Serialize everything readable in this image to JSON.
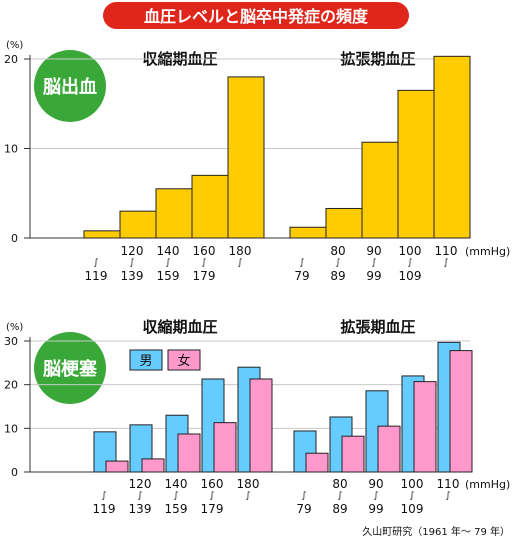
{
  "title": "血圧レベルと脳卒中発症の頻度",
  "colors": {
    "title_bg": "#e0261b",
    "badge": "#3aa838",
    "bar_single": "#ffcc00",
    "male": "#66ccff",
    "female": "#ff99cc",
    "bar_stroke": "#222222"
  },
  "source": "久山町研究（1961 年〜 79 年）",
  "chart_data": [
    {
      "type": "bar",
      "badge": "脳出血",
      "unit_label": "(%)",
      "yticks": [
        "0",
        "10",
        "20"
      ],
      "ylim": [
        0,
        22
      ],
      "groups": [
        {
          "label": "収縮期血圧",
          "categories": [
            {
              "top": "",
              "bottom": "119"
            },
            {
              "top": "120",
              "bottom": "139"
            },
            {
              "top": "140",
              "bottom": "159"
            },
            {
              "top": "160",
              "bottom": "179"
            },
            {
              "top": "180",
              "bottom": ""
            }
          ],
          "values": [
            0.8,
            3.0,
            5.5,
            7.0,
            18.0
          ]
        },
        {
          "label": "拡張期血圧",
          "categories": [
            {
              "top": "",
              "bottom": "79"
            },
            {
              "top": "80",
              "bottom": "89"
            },
            {
              "top": "90",
              "bottom": "99"
            },
            {
              "top": "100",
              "bottom": "109"
            },
            {
              "top": "110",
              "bottom": ""
            }
          ],
          "values": [
            1.2,
            3.3,
            10.7,
            16.5,
            20.3
          ]
        }
      ],
      "unit": "(mmHg)"
    },
    {
      "type": "bar",
      "badge": "脳梗塞",
      "unit_label": "(%)",
      "yticks": [
        "0",
        "10",
        "20",
        "30"
      ],
      "ylim": [
        0,
        31
      ],
      "legend": [
        "男",
        "女"
      ],
      "groups": [
        {
          "label": "収縮期血圧",
          "categories": [
            {
              "top": "",
              "bottom": "119"
            },
            {
              "top": "120",
              "bottom": "139"
            },
            {
              "top": "140",
              "bottom": "159"
            },
            {
              "top": "160",
              "bottom": "179"
            },
            {
              "top": "180",
              "bottom": ""
            }
          ],
          "series": [
            {
              "name": "男",
              "values": [
                9.2,
                10.8,
                13.0,
                21.3,
                24.0
              ]
            },
            {
              "name": "女",
              "values": [
                2.5,
                3.0,
                8.7,
                11.3,
                21.3
              ]
            }
          ]
        },
        {
          "label": "拡張期血圧",
          "categories": [
            {
              "top": "",
              "bottom": "79"
            },
            {
              "top": "80",
              "bottom": "89"
            },
            {
              "top": "90",
              "bottom": "99"
            },
            {
              "top": "100",
              "bottom": "109"
            },
            {
              "top": "110",
              "bottom": ""
            }
          ],
          "series": [
            {
              "name": "男",
              "values": [
                9.4,
                12.6,
                18.6,
                22.0,
                29.7
              ]
            },
            {
              "name": "女",
              "values": [
                4.3,
                8.2,
                10.5,
                20.7,
                27.8
              ]
            }
          ]
        }
      ],
      "unit": "(mmHg)"
    }
  ]
}
